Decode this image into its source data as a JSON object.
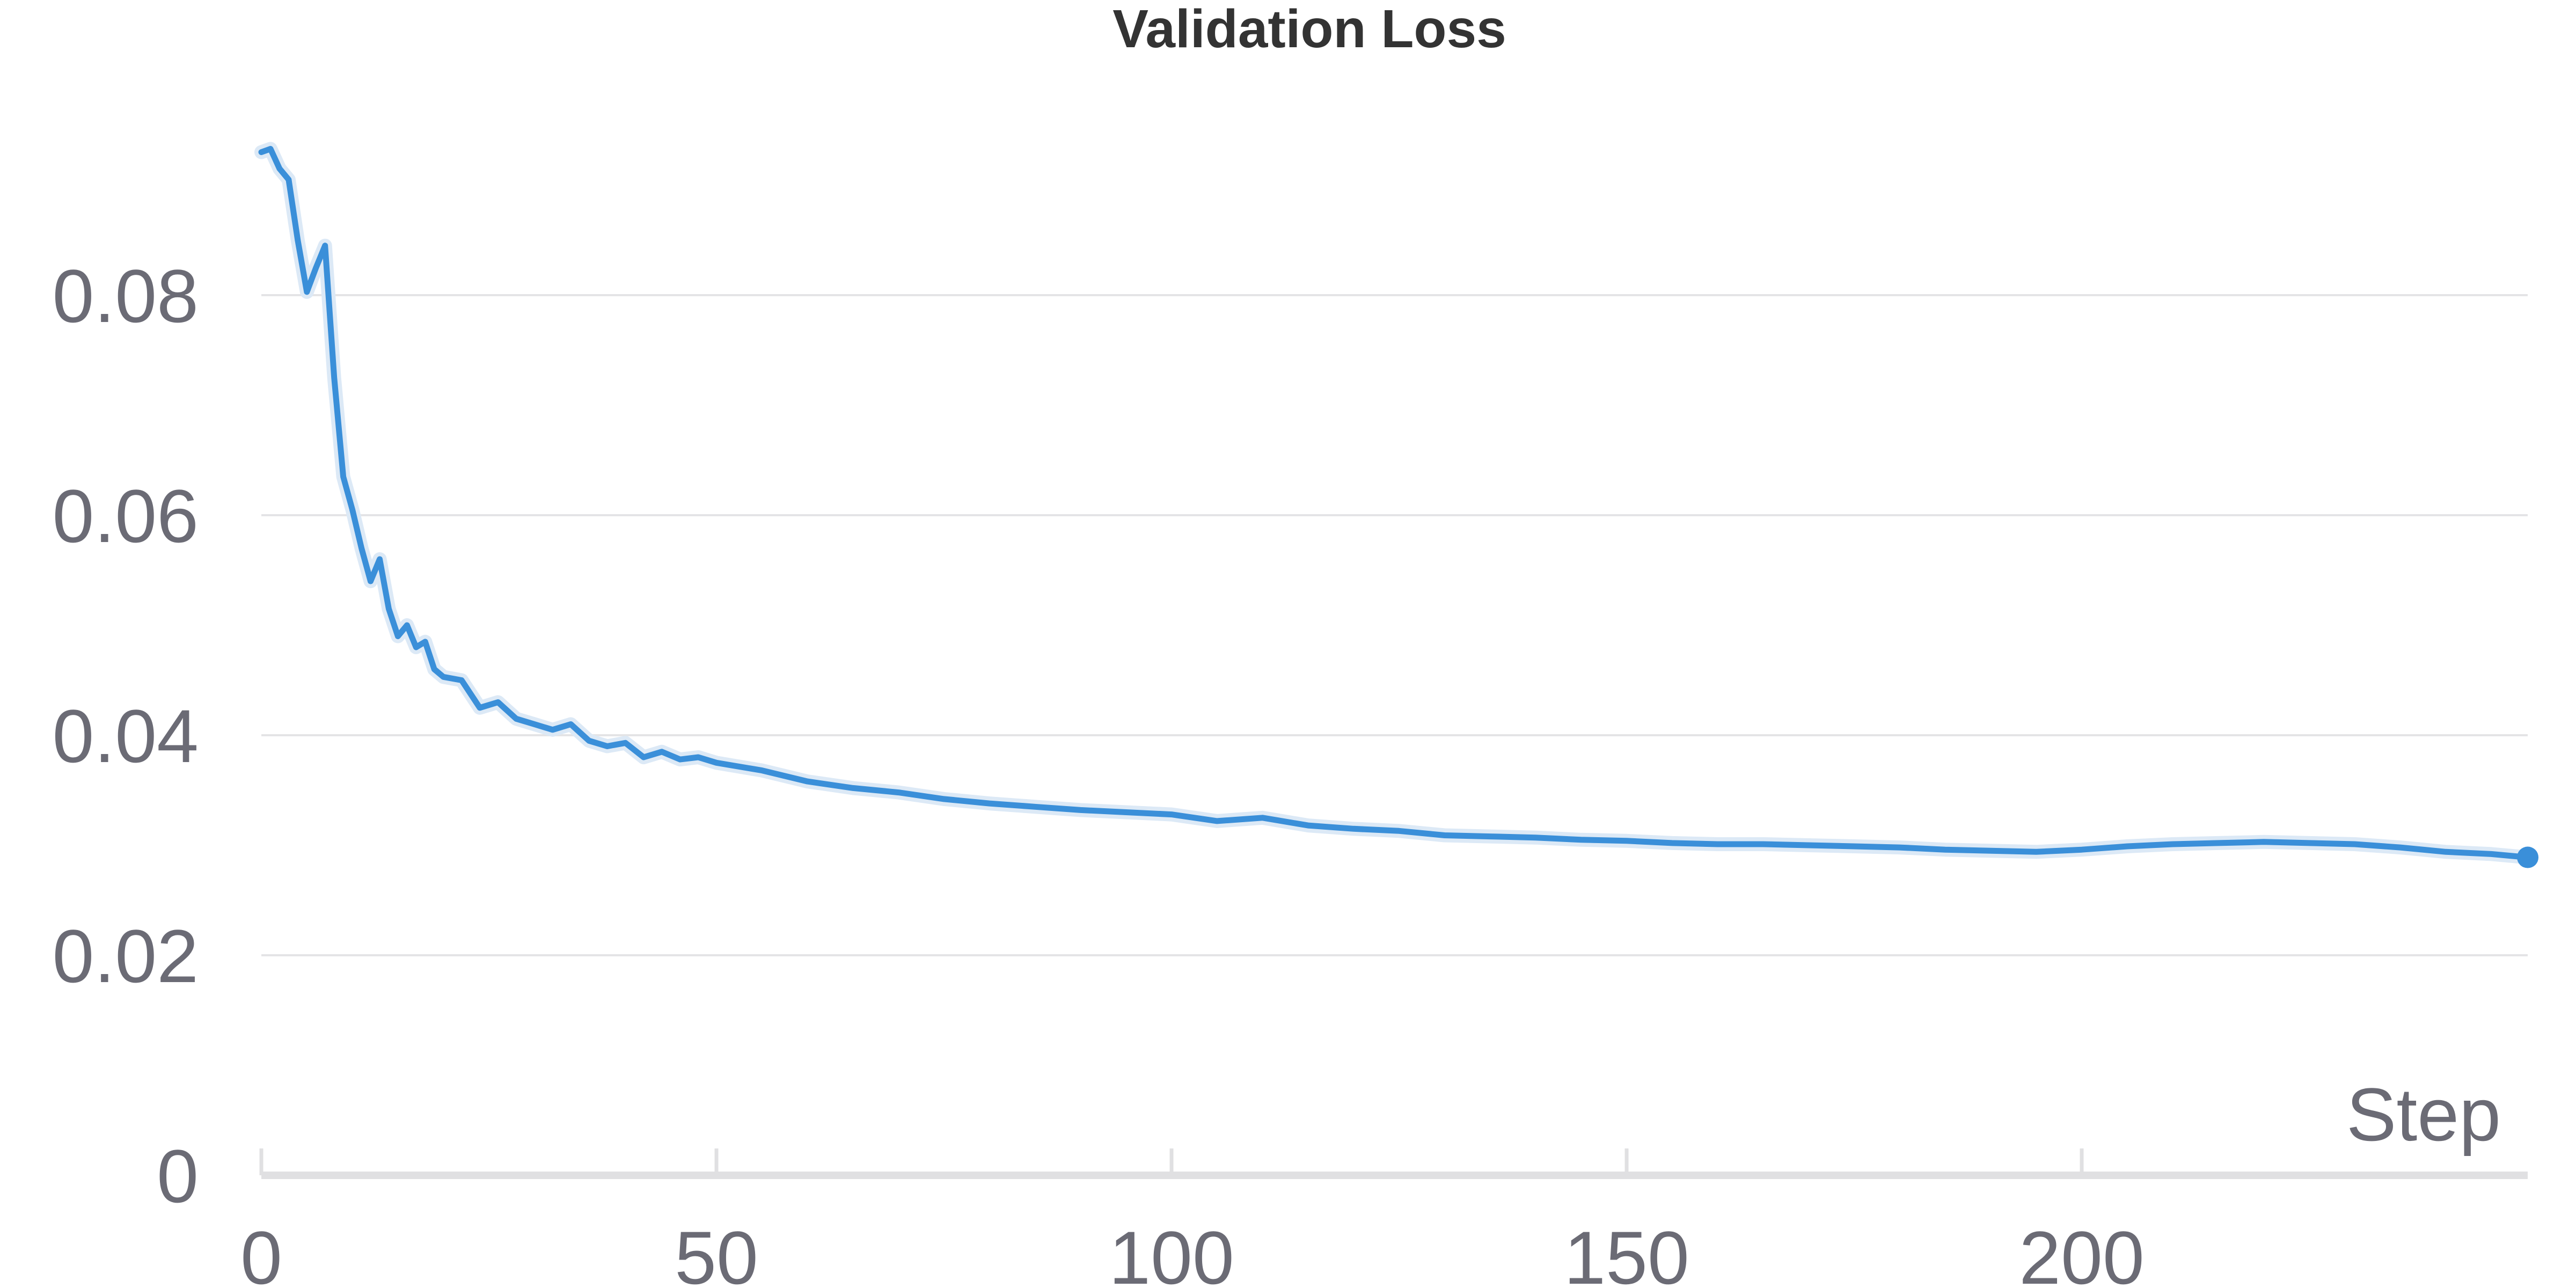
{
  "chart_data": {
    "type": "line",
    "title": "Validation Loss",
    "xlabel": "Step",
    "ylabel": "",
    "xlim": [
      0,
      249
    ],
    "ylim": [
      0,
      0.095
    ],
    "xticks": [
      0,
      50,
      100,
      150,
      200
    ],
    "xtick_labels": [
      "0",
      "50",
      "100",
      "150",
      "200"
    ],
    "yticks": [
      0,
      0.02,
      0.04,
      0.06,
      0.08
    ],
    "ytick_labels": [
      "0",
      "0.02",
      "0.04",
      "0.06",
      "0.08"
    ],
    "grid": true,
    "legend": "none",
    "color": "#3a8fd9",
    "series": [
      {
        "x": [
          0,
          1,
          2,
          3,
          4,
          5,
          6,
          7,
          8,
          9,
          10,
          11,
          12,
          13,
          14,
          15,
          16,
          17,
          18,
          19,
          20,
          22,
          24,
          26,
          28,
          30,
          32,
          34,
          36,
          38,
          40,
          42,
          44,
          46,
          48,
          50,
          55,
          60,
          65,
          70,
          75,
          80,
          85,
          90,
          95,
          100,
          105,
          110,
          115,
          120,
          125,
          130,
          135,
          140,
          145,
          150,
          155,
          160,
          165,
          170,
          175,
          180,
          185,
          190,
          195,
          200,
          205,
          210,
          215,
          220,
          225,
          230,
          235,
          240,
          245,
          249
        ],
        "values": [
          0.093,
          0.0933,
          0.0915,
          0.0905,
          0.085,
          0.0803,
          0.0825,
          0.0845,
          0.0725,
          0.0635,
          0.0605,
          0.057,
          0.054,
          0.056,
          0.0515,
          0.049,
          0.05,
          0.048,
          0.0485,
          0.046,
          0.0453,
          0.045,
          0.0425,
          0.043,
          0.0415,
          0.041,
          0.0405,
          0.041,
          0.0395,
          0.039,
          0.0393,
          0.038,
          0.0385,
          0.0378,
          0.038,
          0.0375,
          0.0368,
          0.0358,
          0.0352,
          0.0348,
          0.0342,
          0.0338,
          0.0335,
          0.0332,
          0.033,
          0.0328,
          0.0322,
          0.0325,
          0.0318,
          0.0315,
          0.0313,
          0.0309,
          0.0308,
          0.0307,
          0.0305,
          0.0304,
          0.0302,
          0.0301,
          0.0301,
          0.03,
          0.0299,
          0.0298,
          0.0296,
          0.0295,
          0.0294,
          0.0296,
          0.0299,
          0.0301,
          0.0302,
          0.0303,
          0.0302,
          0.0301,
          0.0298,
          0.0294,
          0.0292,
          0.0289
        ]
      }
    ]
  }
}
